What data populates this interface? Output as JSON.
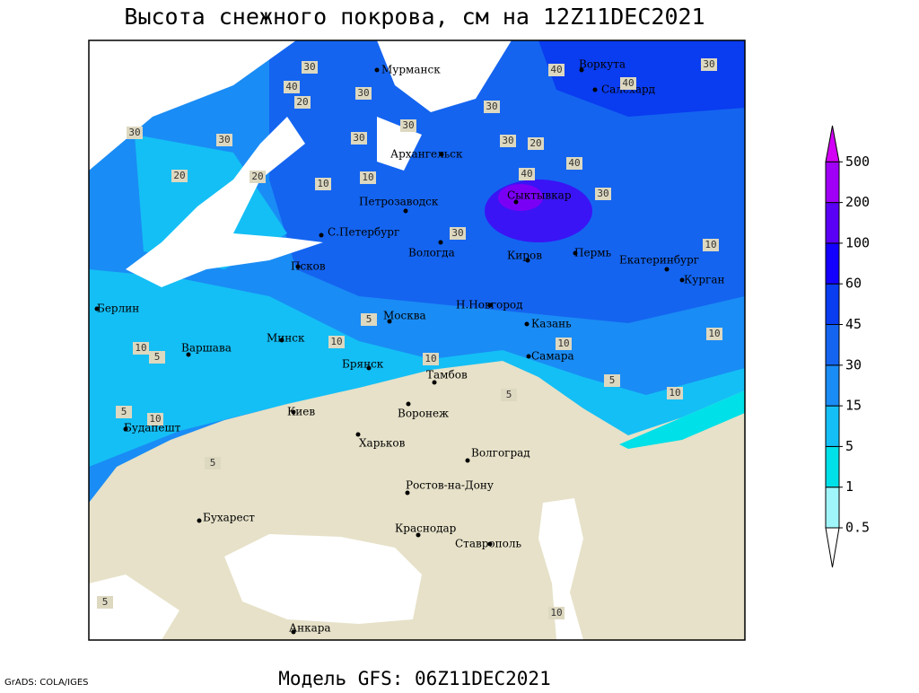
{
  "header": {
    "title": "Высота снежного покрова, см на 12Z11DEC2021"
  },
  "map": {
    "cities": [
      "Мурманск",
      "Воркута",
      "Салехард",
      "Архангельск",
      "Сыктывкар",
      "Петрозаводск",
      "С.Петербург",
      "Вологда",
      "Киров",
      "Пермь",
      "Екатеринбург",
      "Курган",
      "Псков",
      "Берлин",
      "Н.Новгород",
      "Москва",
      "Казань",
      "Минск",
      "Варшава",
      "Самара",
      "Брянск",
      "Тамбов",
      "Киев",
      "Воронеж",
      "Будапешт",
      "Харьков",
      "Волгоград",
      "Ростов-на-Дону",
      "Бухарест",
      "Краснодар",
      "Ставрополь",
      "Анкара"
    ],
    "contour_labels": [
      30,
      40,
      40,
      30,
      20,
      30,
      30,
      20,
      30,
      30,
      30,
      40,
      40,
      30,
      30,
      20,
      20,
      10,
      40,
      30,
      10,
      10,
      30,
      10,
      5,
      10,
      5,
      10,
      5,
      10,
      5,
      10,
      5,
      10,
      5,
      10,
      5,
      10
    ]
  },
  "legend": {
    "levels": [
      0.5,
      1,
      5,
      15,
      30,
      45,
      60,
      100,
      200,
      500
    ],
    "colors": [
      "#ffffff",
      "#a0f5fa",
      "#00e0e8",
      "#14bff5",
      "#1a8cf5",
      "#1464f0",
      "#0a3cf0",
      "#1400ff",
      "#5a00f5",
      "#a000f5",
      "#d200f5"
    ]
  },
  "footer": {
    "model": "Модель GFS: 06Z11DEC2021",
    "credit": "GrADS: COLA/IGES"
  }
}
